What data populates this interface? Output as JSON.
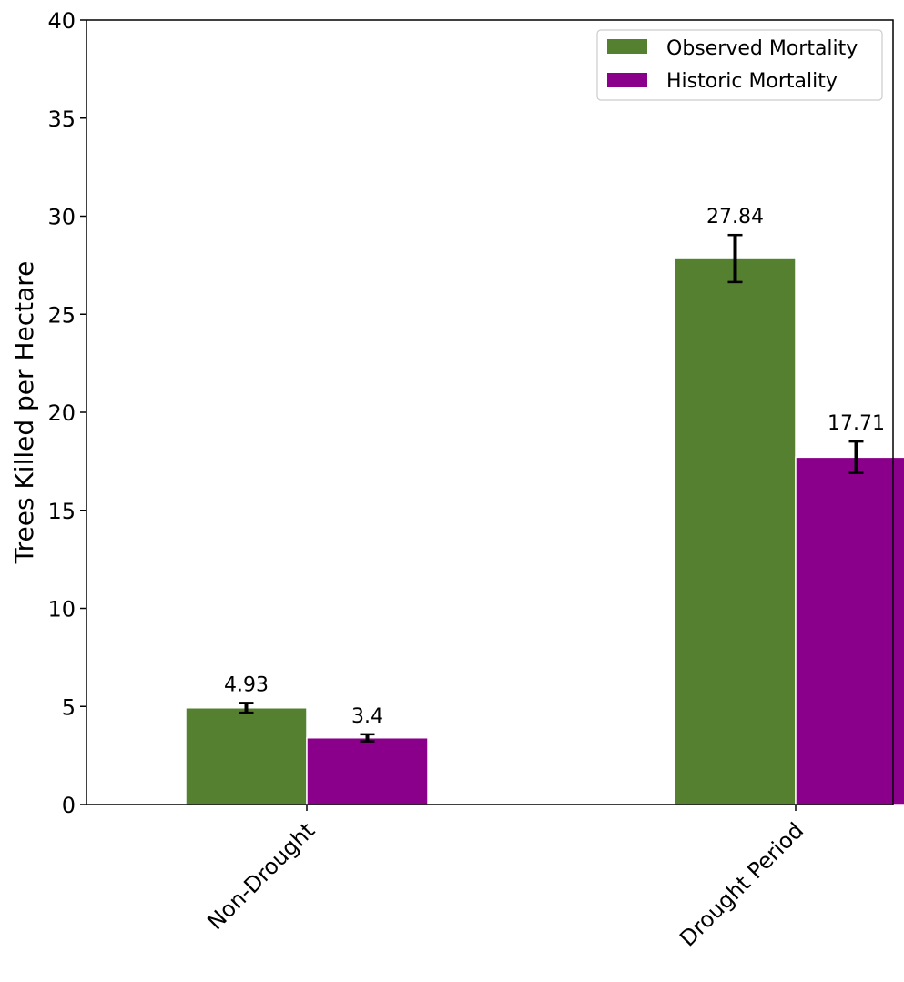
{
  "chart_data": {
    "type": "bar",
    "title": "",
    "xlabel": "",
    "ylabel": "Trees Killed per Hectare",
    "categories": [
      "Non-Drought",
      "Drought Period"
    ],
    "series": [
      {
        "name": "Observed Mortality",
        "color": "#548030",
        "values": [
          4.93,
          27.84
        ],
        "labels": [
          "4.93",
          "27.84"
        ],
        "errors": [
          0.25,
          1.2
        ]
      },
      {
        "name": "Historic Mortality",
        "color": "#8b008b",
        "values": [
          3.4,
          17.71
        ],
        "labels": [
          "3.4",
          "17.71"
        ],
        "errors": [
          0.18,
          0.8
        ]
      }
    ],
    "ylim": [
      0,
      40
    ],
    "yticks": [
      "0",
      "5",
      "10",
      "15",
      "20",
      "25",
      "30",
      "35",
      "40"
    ],
    "grid": false,
    "legend_position": "top-right",
    "error_bar_color": "#000000"
  }
}
